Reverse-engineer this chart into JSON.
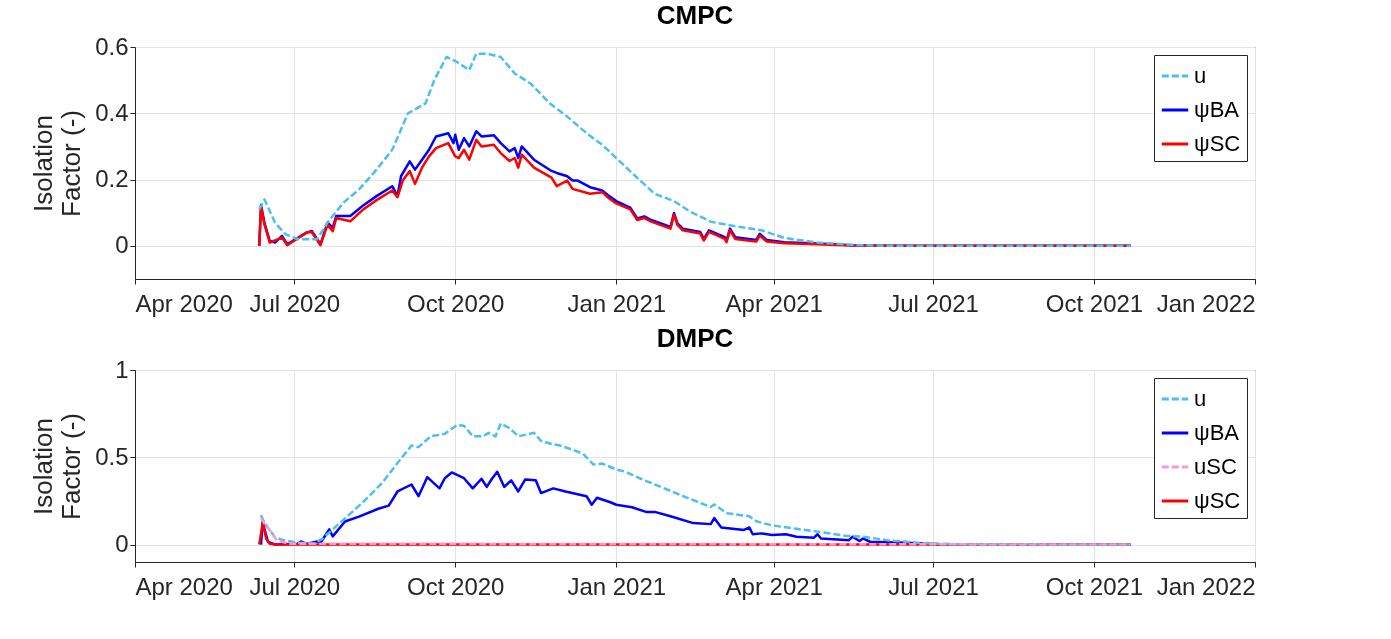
{
  "chart_data": [
    {
      "type": "line",
      "title": "CMPC",
      "ylabel": "Isolation Factor (-)",
      "xlim": [
        "2020-04-01",
        "2022-01-01"
      ],
      "xticks": [
        {
          "value": "2020-04-01",
          "label": "Apr 2020"
        },
        {
          "value": "2020-07-01",
          "label": "Jul 2020"
        },
        {
          "value": "2020-10-01",
          "label": "Oct 2020"
        },
        {
          "value": "2021-01-01",
          "label": "Jan 2021"
        },
        {
          "value": "2021-04-01",
          "label": "Apr 2021"
        },
        {
          "value": "2021-07-01",
          "label": "Jul 2021"
        },
        {
          "value": "2021-10-01",
          "label": "Oct 2021"
        },
        {
          "value": "2022-01-01",
          "label": "Jan 2022"
        }
      ],
      "ylim": [
        -0.1,
        0.6
      ],
      "yticks": [
        0,
        0.2,
        0.4,
        0.6
      ],
      "grid": true,
      "legend": "top right",
      "series": [
        {
          "name": "u",
          "color": "#4dbeee",
          "line_style": "dashed",
          "x": [
            "2020-06-11",
            "2020-06-14",
            "2020-06-20",
            "2020-06-26",
            "2020-07-03",
            "2020-07-14",
            "2020-07-20",
            "2020-07-29",
            "2020-08-07",
            "2020-08-17",
            "2020-08-26",
            "2020-09-04",
            "2020-09-14",
            "2020-09-19",
            "2020-09-26",
            "2020-10-02",
            "2020-10-09",
            "2020-10-13",
            "2020-10-19",
            "2020-10-27",
            "2020-11-04",
            "2020-11-13",
            "2020-11-24",
            "2020-12-04",
            "2020-12-15",
            "2020-12-24",
            "2021-01-03",
            "2021-01-12",
            "2021-01-23",
            "2021-02-03",
            "2021-02-12",
            "2021-02-24",
            "2021-03-07",
            "2021-03-25",
            "2021-04-07",
            "2021-04-26",
            "2021-05-16",
            "2021-06-05",
            "2021-10-22"
          ],
          "values": [
            0.11,
            0.14,
            0.07,
            0.035,
            0.02,
            0.02,
            0.07,
            0.13,
            0.17,
            0.23,
            0.29,
            0.4,
            0.43,
            0.5,
            0.57,
            0.555,
            0.53,
            0.58,
            0.58,
            0.57,
            0.52,
            0.49,
            0.43,
            0.39,
            0.34,
            0.305,
            0.255,
            0.21,
            0.157,
            0.135,
            0.104,
            0.073,
            0.062,
            0.047,
            0.024,
            0.01,
            0.003,
            0,
            0
          ]
        },
        {
          "name": "ψBA",
          "color": "#0000ff",
          "line_style": "solid",
          "x": [
            "2020-06-11",
            "2020-06-12",
            "2020-06-14",
            "2020-06-17",
            "2020-06-20",
            "2020-06-24",
            "2020-06-27",
            "2020-07-08",
            "2020-07-11",
            "2020-07-16",
            "2020-07-20",
            "2020-07-23",
            "2020-07-25",
            "2020-08-02",
            "2020-08-09",
            "2020-08-17",
            "2020-08-26",
            "2020-08-29",
            "2020-08-31",
            "2020-09-05",
            "2020-09-08",
            "2020-09-12",
            "2020-09-16",
            "2020-09-20",
            "2020-09-27",
            "2020-09-30",
            "2020-10-01",
            "2020-10-03",
            "2020-10-06",
            "2020-10-09",
            "2020-10-13",
            "2020-10-16",
            "2020-10-23",
            "2020-10-27",
            "2020-11-01",
            "2020-11-04",
            "2020-11-06",
            "2020-11-08",
            "2020-11-15",
            "2020-11-25",
            "2020-11-28",
            "2020-12-04",
            "2020-12-07",
            "2020-12-10",
            "2020-12-17",
            "2020-12-24",
            "2020-12-28",
            "2021-01-01",
            "2021-01-09",
            "2021-01-13",
            "2021-01-17",
            "2021-01-21",
            "2021-02-01",
            "2021-02-03",
            "2021-02-05",
            "2021-02-08",
            "2021-02-18",
            "2021-02-20",
            "2021-02-23",
            "2021-03-04",
            "2021-03-05",
            "2021-03-07",
            "2021-03-10",
            "2021-03-22",
            "2021-03-24",
            "2021-03-28",
            "2021-04-07",
            "2021-04-26",
            "2021-05-16",
            "2021-06-05",
            "2021-10-22"
          ],
          "values": [
            0,
            0.123,
            0.069,
            0.015,
            0.01,
            0.03,
            0.005,
            0.04,
            0.045,
            0.005,
            0.07,
            0.055,
            0.09,
            0.09,
            0.12,
            0.15,
            0.18,
            0.15,
            0.21,
            0.255,
            0.23,
            0.26,
            0.29,
            0.33,
            0.34,
            0.31,
            0.335,
            0.29,
            0.325,
            0.3,
            0.346,
            0.33,
            0.334,
            0.31,
            0.285,
            0.295,
            0.265,
            0.3,
            0.26,
            0.226,
            0.22,
            0.21,
            0.197,
            0.197,
            0.177,
            0.167,
            0.15,
            0.135,
            0.115,
            0.083,
            0.089,
            0.078,
            0.057,
            0.099,
            0.068,
            0.052,
            0.042,
            0.021,
            0.047,
            0.026,
            0.016,
            0.052,
            0.026,
            0.018,
            0.036,
            0.018,
            0.011,
            0.007,
            0.002,
            0,
            0
          ]
        },
        {
          "name": "ψSC",
          "color": "#ff0000",
          "line_style": "solid",
          "x": [
            "2020-06-11",
            "2020-06-12",
            "2020-06-14",
            "2020-06-17",
            "2020-06-24",
            "2020-06-27",
            "2020-07-08",
            "2020-07-11",
            "2020-07-16",
            "2020-07-20",
            "2020-07-23",
            "2020-07-25",
            "2020-08-02",
            "2020-08-09",
            "2020-08-17",
            "2020-08-26",
            "2020-08-29",
            "2020-09-01",
            "2020-09-05",
            "2020-09-08",
            "2020-09-12",
            "2020-09-16",
            "2020-09-20",
            "2020-09-27",
            "2020-10-01",
            "2020-10-03",
            "2020-10-06",
            "2020-10-09",
            "2020-10-13",
            "2020-10-16",
            "2020-10-23",
            "2020-10-27",
            "2020-11-01",
            "2020-11-04",
            "2020-11-06",
            "2020-11-08",
            "2020-11-15",
            "2020-11-25",
            "2020-11-28",
            "2020-12-04",
            "2020-12-07",
            "2020-12-17",
            "2020-12-24",
            "2020-12-28",
            "2021-01-01",
            "2021-01-09",
            "2021-01-13",
            "2021-01-17",
            "2021-01-21",
            "2021-02-01",
            "2021-02-03",
            "2021-02-05",
            "2021-02-08",
            "2021-02-18",
            "2021-02-20",
            "2021-02-23",
            "2021-03-04",
            "2021-03-05",
            "2021-03-07",
            "2021-03-10",
            "2021-03-22",
            "2021-03-24",
            "2021-03-28",
            "2021-04-07",
            "2021-04-26",
            "2021-05-16",
            "2021-06-05",
            "2021-10-22"
          ],
          "values": [
            0,
            0.118,
            0.064,
            0.01,
            0.025,
            0.002,
            0.04,
            0.042,
            0.002,
            0.064,
            0.044,
            0.084,
            0.074,
            0.108,
            0.138,
            0.167,
            0.147,
            0.197,
            0.226,
            0.187,
            0.236,
            0.27,
            0.295,
            0.31,
            0.27,
            0.265,
            0.29,
            0.26,
            0.32,
            0.3,
            0.305,
            0.28,
            0.256,
            0.265,
            0.236,
            0.275,
            0.236,
            0.206,
            0.18,
            0.197,
            0.172,
            0.157,
            0.162,
            0.143,
            0.128,
            0.11,
            0.078,
            0.084,
            0.073,
            0.052,
            0.094,
            0.063,
            0.047,
            0.037,
            0.016,
            0.042,
            0.021,
            0.011,
            0.047,
            0.021,
            0.013,
            0.031,
            0.013,
            0.008,
            0.005,
            0.001,
            0,
            0
          ]
        }
      ]
    },
    {
      "type": "line",
      "title": "DMPC",
      "ylabel": "Isolation Factor (-)",
      "xlim": [
        "2020-04-01",
        "2022-01-01"
      ],
      "xticks": [
        {
          "value": "2020-04-01",
          "label": "Apr 2020"
        },
        {
          "value": "2020-07-01",
          "label": "Jul 2020"
        },
        {
          "value": "2020-10-01",
          "label": "Oct 2020"
        },
        {
          "value": "2021-01-01",
          "label": "Jan 2021"
        },
        {
          "value": "2021-04-01",
          "label": "Apr 2021"
        },
        {
          "value": "2021-07-01",
          "label": "Jul 2021"
        },
        {
          "value": "2021-10-01",
          "label": "Oct 2021"
        },
        {
          "value": "2022-01-01",
          "label": "Jan 2022"
        }
      ],
      "ylim": [
        -0.1,
        1
      ],
      "yticks": [
        0,
        0.5,
        1
      ],
      "grid": true,
      "legend": "top right",
      "series": [
        {
          "name": "u",
          "color": "#4dbeee",
          "line_style": "dashed",
          "x": [
            "2020-06-12",
            "2020-06-14",
            "2020-06-20",
            "2020-06-25",
            "2020-07-03",
            "2020-07-12",
            "2020-07-17",
            "2020-07-23",
            "2020-07-30",
            "2020-08-09",
            "2020-08-20",
            "2020-08-29",
            "2020-09-06",
            "2020-09-10",
            "2020-09-17",
            "2020-09-25",
            "2020-10-02",
            "2020-10-06",
            "2020-10-11",
            "2020-10-17",
            "2020-10-20",
            "2020-10-24",
            "2020-10-27",
            "2020-11-01",
            "2020-11-06",
            "2020-11-15",
            "2020-11-19",
            "2020-11-25",
            "2020-11-30",
            "2020-12-08",
            "2020-12-13",
            "2020-12-19",
            "2020-12-24",
            "2021-01-01",
            "2021-01-06",
            "2021-01-15",
            "2021-01-27",
            "2021-02-10",
            "2021-02-24",
            "2021-02-26",
            "2021-03-05",
            "2021-03-18",
            "2021-03-22",
            "2021-03-31",
            "2021-04-14",
            "2021-04-26",
            "2021-05-12",
            "2021-05-22",
            "2021-06-05",
            "2021-06-25",
            "2021-07-15",
            "2021-10-22"
          ],
          "values": [
            0.168,
            0.123,
            0.042,
            0.024,
            0.011,
            0.005,
            0.033,
            0.087,
            0.15,
            0.24,
            0.35,
            0.467,
            0.567,
            0.558,
            0.62,
            0.634,
            0.685,
            0.68,
            0.62,
            0.62,
            0.64,
            0.62,
            0.694,
            0.667,
            0.62,
            0.64,
            0.594,
            0.576,
            0.567,
            0.54,
            0.52,
            0.458,
            0.464,
            0.43,
            0.418,
            0.377,
            0.328,
            0.27,
            0.215,
            0.23,
            0.18,
            0.162,
            0.133,
            0.11,
            0.09,
            0.074,
            0.05,
            0.045,
            0.025,
            0.008,
            0.002,
            0
          ]
        },
        {
          "name": "ψBA",
          "color": "#0000ff",
          "line_style": "solid",
          "x": [
            "2020-06-12",
            "2020-06-13",
            "2020-06-14",
            "2020-06-16",
            "2020-06-20",
            "2020-07-03",
            "2020-07-05",
            "2020-07-08",
            "2020-07-14",
            "2020-07-16",
            "2020-07-21",
            "2020-07-23",
            "2020-07-30",
            "2020-08-07",
            "2020-08-18",
            "2020-08-24",
            "2020-08-29",
            "2020-09-06",
            "2020-09-10",
            "2020-09-15",
            "2020-09-22",
            "2020-09-25",
            "2020-09-29",
            "2020-10-06",
            "2020-10-11",
            "2020-10-16",
            "2020-10-19",
            "2020-10-22",
            "2020-10-25",
            "2020-10-29",
            "2020-11-02",
            "2020-11-06",
            "2020-11-10",
            "2020-11-16",
            "2020-11-19",
            "2020-11-26",
            "2020-12-03",
            "2020-12-15",
            "2020-12-18",
            "2020-12-21",
            "2020-12-29",
            "2021-01-01",
            "2021-01-10",
            "2021-01-18",
            "2021-01-23",
            "2021-02-01",
            "2021-02-14",
            "2021-02-24",
            "2021-02-26",
            "2021-03-02",
            "2021-03-15",
            "2021-03-18",
            "2021-03-20",
            "2021-03-25",
            "2021-03-31",
            "2021-04-08",
            "2021-04-14",
            "2021-04-24",
            "2021-04-26",
            "2021-04-28",
            "2021-05-14",
            "2021-05-16",
            "2021-05-20",
            "2021-05-22",
            "2021-05-26",
            "2021-06-15",
            "2021-07-05",
            "2021-10-22"
          ],
          "values": [
            0,
            0.14,
            0.087,
            0.015,
            0,
            0.005,
            0.018,
            0.003,
            0.018,
            0.01,
            0.087,
            0.047,
            0.132,
            0.16,
            0.205,
            0.223,
            0.304,
            0.344,
            0.277,
            0.386,
            0.322,
            0.38,
            0.413,
            0.38,
            0.322,
            0.377,
            0.33,
            0.377,
            0.417,
            0.33,
            0.368,
            0.304,
            0.373,
            0.368,
            0.295,
            0.322,
            0.304,
            0.277,
            0.228,
            0.268,
            0.241,
            0.228,
            0.214,
            0.187,
            0.187,
            0.162,
            0.123,
            0.117,
            0.152,
            0.098,
            0.084,
            0.098,
            0.059,
            0.064,
            0.055,
            0.059,
            0.045,
            0.039,
            0.059,
            0.035,
            0.025,
            0.045,
            0.02,
            0.035,
            0.016,
            0.01,
            0.002,
            0
          ]
        },
        {
          "name": "uSC",
          "color": "#ff99cc",
          "line_style": "dashed",
          "x": [
            "2020-06-12",
            "2020-06-14",
            "2020-06-18",
            "2020-06-21",
            "2020-06-28",
            "2021-10-22"
          ],
          "values": [
            0.15,
            0.12,
            0.07,
            0.024,
            0.005,
            0
          ]
        },
        {
          "name": "ψSC",
          "color": "#ff0000",
          "line_style": "solid",
          "x": [
            "2020-06-11",
            "2020-06-13",
            "2020-06-15",
            "2020-06-17",
            "2020-06-20",
            "2021-10-22"
          ],
          "values": [
            0,
            0.123,
            0.033,
            0.004,
            0,
            0
          ]
        }
      ]
    }
  ]
}
